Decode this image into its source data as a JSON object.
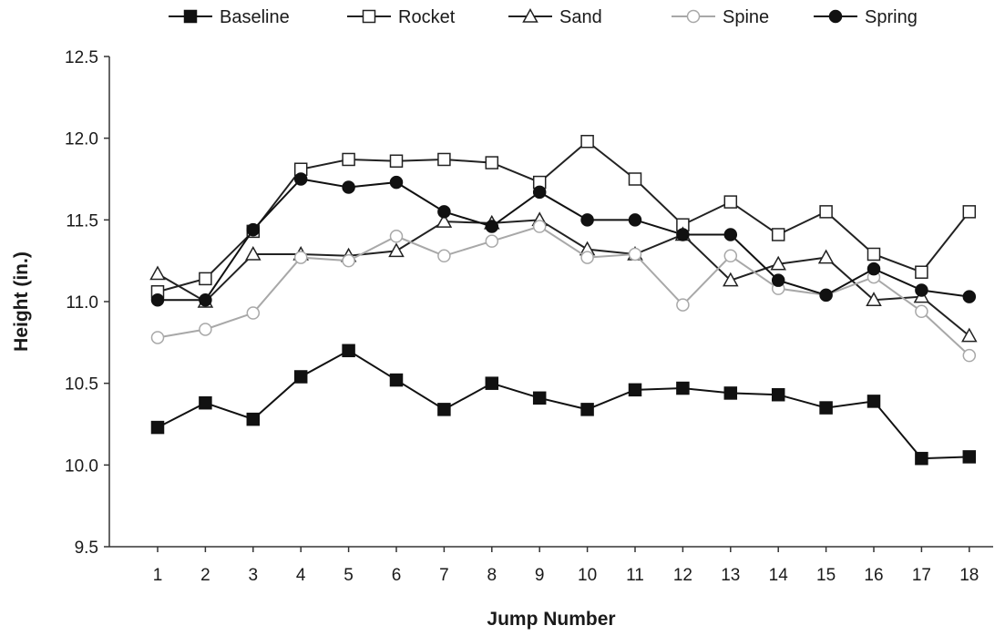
{
  "chart_data": {
    "type": "line",
    "title": "",
    "xlabel": "Jump Number",
    "ylabel": "Height (in.)",
    "x": [
      1,
      2,
      3,
      4,
      5,
      6,
      7,
      8,
      9,
      10,
      11,
      12,
      13,
      14,
      15,
      16,
      17,
      18
    ],
    "ylim": [
      9.5,
      12.5
    ],
    "yticks": [
      9.5,
      10.0,
      10.5,
      11.0,
      11.5,
      12.0,
      12.5
    ],
    "ytick_labels": [
      "9.5",
      "10.0",
      "10.5",
      "11.0",
      "11.5",
      "12.0",
      "12.5"
    ],
    "grid": false,
    "legend_position": "top",
    "series": [
      {
        "name": "Baseline",
        "marker": "square-filled",
        "color": "#111111",
        "values": [
          10.23,
          10.38,
          10.28,
          10.54,
          10.7,
          10.52,
          10.34,
          10.5,
          10.41,
          10.34,
          10.46,
          10.47,
          10.44,
          10.43,
          10.35,
          10.39,
          10.04,
          10.05
        ]
      },
      {
        "name": "Rocket",
        "marker": "square-open",
        "color": "#222222",
        "values": [
          11.06,
          11.14,
          11.43,
          11.81,
          11.87,
          11.86,
          11.87,
          11.85,
          11.73,
          11.98,
          11.75,
          11.47,
          11.61,
          11.41,
          11.55,
          11.29,
          11.18,
          11.55
        ]
      },
      {
        "name": "Sand",
        "marker": "triangle-open",
        "color": "#222222",
        "values": [
          11.17,
          11.0,
          11.29,
          11.29,
          11.28,
          11.31,
          11.49,
          11.48,
          11.5,
          11.32,
          11.29,
          11.41,
          11.13,
          11.23,
          11.27,
          11.01,
          11.03,
          10.79
        ]
      },
      {
        "name": "Spine",
        "marker": "circle-open",
        "color": "#a8a8a8",
        "values": [
          10.78,
          10.83,
          10.93,
          11.27,
          11.25,
          11.4,
          11.28,
          11.37,
          11.46,
          11.27,
          11.29,
          10.98,
          11.28,
          11.08,
          11.04,
          11.15,
          10.94,
          10.67
        ]
      },
      {
        "name": "Spring",
        "marker": "circle-filled",
        "color": "#111111",
        "values": [
          11.01,
          11.01,
          11.44,
          11.75,
          11.7,
          11.73,
          11.55,
          11.46,
          11.67,
          11.5,
          11.5,
          11.41,
          11.41,
          11.13,
          11.04,
          11.2,
          11.07,
          11.03
        ]
      }
    ]
  }
}
